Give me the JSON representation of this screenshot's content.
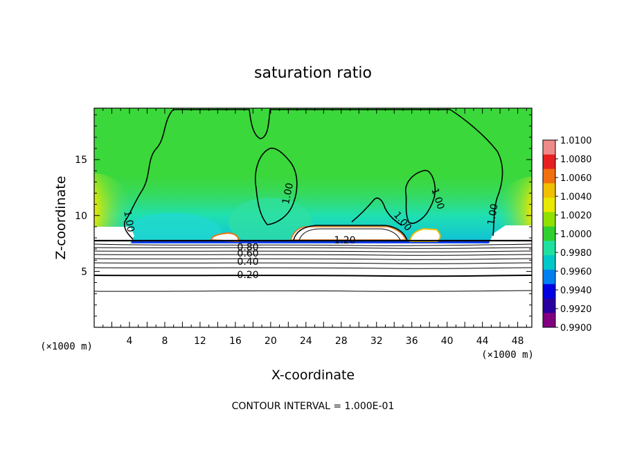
{
  "chart_data": {
    "type": "heatmap",
    "title": "saturation ratio",
    "xlabel": "X-coordinate",
    "ylabel": "Z-coordinate",
    "x_unit": "(×1000 m)",
    "x_ticks": [
      4,
      8,
      12,
      16,
      20,
      24,
      28,
      32,
      36,
      40,
      44,
      48
    ],
    "y_ticks": [
      5,
      10,
      15
    ],
    "xlim": [
      0,
      49.6
    ],
    "ylim": [
      0,
      19.6
    ],
    "footer": "CONTOUR INTERVAL = 1.000E-01",
    "contour_labels": [
      "1.00",
      "1.00",
      "1.00",
      "1.00",
      "1.00",
      "1.20",
      "0.80",
      "0.60",
      "0.40",
      "0.20"
    ],
    "colorbar": {
      "ticks": [
        "1.0100",
        "1.0080",
        "1.0060",
        "1.0040",
        "1.0020",
        "1.0000",
        "0.9980",
        "0.9960",
        "0.9940",
        "0.9920",
        "0.9900"
      ],
      "colors": [
        "#f08a8a",
        "#e62020",
        "#f07010",
        "#f0c000",
        "#e8e800",
        "#90e000",
        "#30d030",
        "#20e0a0",
        "#00c8c8",
        "#0080f0",
        "#0000e0",
        "#2800a0",
        "#800080"
      ]
    },
    "grid": false,
    "legend_position": "right"
  }
}
